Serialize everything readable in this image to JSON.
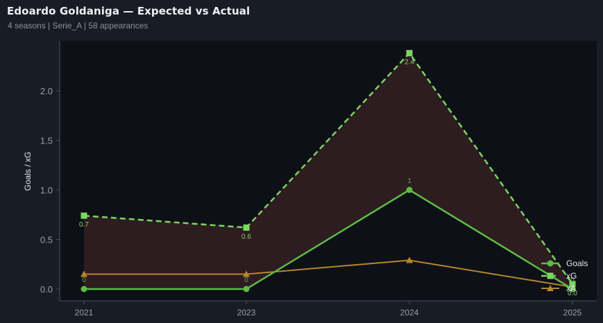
{
  "header": {
    "title": "Edoardo Goldaniga — Expected vs Actual",
    "subtitle": "4 seasons | Serie_A | 58 appearances"
  },
  "colors": {
    "background": "#181c24",
    "plot_background": "#0d1017",
    "goals": "#5dbb46",
    "xg": "#7cd662",
    "xa": "#b8862a",
    "fill": "#2f1d21"
  },
  "chart_data": {
    "type": "line",
    "title": "Edoardo Goldaniga — Expected vs Actual",
    "subtitle": "4 seasons | Serie_A | 58 appearances",
    "xlabel": "",
    "ylabel": "Goals / xG",
    "categories": [
      "2021",
      "2023",
      "2024",
      "2025"
    ],
    "ylim": [
      -0.1,
      2.5
    ],
    "yticks": [
      "0.0",
      "0.5",
      "1.0",
      "1.5",
      "2.0"
    ],
    "grid": false,
    "legend_position": "lower right",
    "series": [
      {
        "name": "Goals",
        "values": [
          0,
          0,
          1,
          0
        ],
        "marker": "circle",
        "style": "solid",
        "labels": [
          "0",
          "0",
          "1",
          "0"
        ]
      },
      {
        "name": "xG",
        "values": [
          0.74,
          0.62,
          2.38,
          0.05
        ],
        "marker": "square",
        "style": "dashed",
        "labels": [
          "0.7",
          "0.6",
          "2.4",
          "0.0"
        ]
      },
      {
        "name": "xA",
        "values": [
          0.15,
          0.15,
          0.29,
          0.02
        ],
        "marker": "triangle",
        "style": "solid"
      }
    ],
    "annotations": [
      "shaded area between Goals and xG"
    ]
  },
  "legend": {
    "items": [
      {
        "label": "Goals"
      },
      {
        "label": "xG"
      },
      {
        "label": "xA"
      }
    ]
  }
}
